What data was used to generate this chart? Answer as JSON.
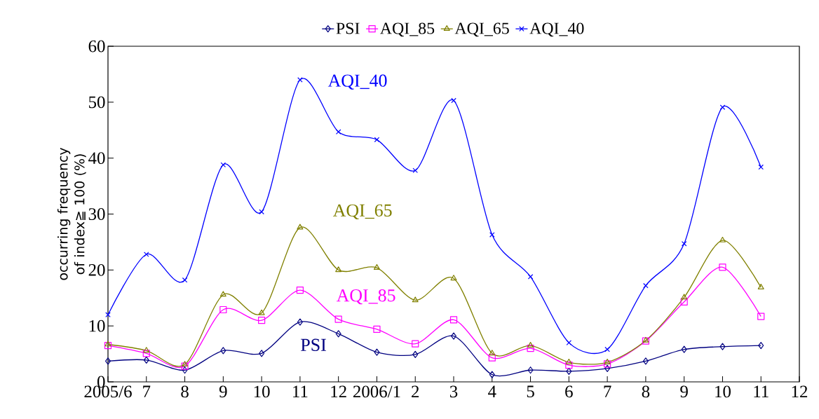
{
  "chart_data": {
    "type": "line",
    "categories": [
      "2005/6",
      "7",
      "8",
      "9",
      "10",
      "11",
      "12",
      "2006/1",
      "2",
      "3",
      "4",
      "5",
      "6",
      "7",
      "8",
      "9",
      "10",
      "11",
      "12"
    ],
    "ylabel": "occurring frequency of index≧ 100 (%)",
    "ylim": [
      0,
      60
    ],
    "yticks": [
      0,
      10,
      20,
      30,
      40,
      50,
      60
    ],
    "legend": "top",
    "grid": false,
    "line_style": "solid",
    "series": [
      {
        "name": "PSI",
        "color": "#000080",
        "marker": "diamond",
        "values": [
          3.7,
          3.9,
          2.1,
          5.6,
          5.1,
          10.7,
          8.6,
          5.3,
          4.9,
          8.2,
          1.3,
          2.1,
          1.9,
          2.4,
          3.7,
          5.8,
          6.3,
          6.5,
          null
        ]
      },
      {
        "name": "AQI_85",
        "color": "#ff00ff",
        "marker": "square",
        "values": [
          6.5,
          5.1,
          2.8,
          12.9,
          11,
          16.4,
          11.2,
          9.4,
          6.8,
          11.1,
          4.3,
          6,
          3,
          3.2,
          7.3,
          14.3,
          20.5,
          11.7,
          null
        ]
      },
      {
        "name": "AQI_65",
        "color": "#808000",
        "marker": "triangle",
        "values": [
          6.7,
          5.6,
          3.1,
          15.6,
          12.3,
          27.6,
          20,
          20.4,
          14.6,
          18.5,
          5.1,
          6.5,
          3.5,
          3.5,
          7.4,
          15.1,
          25.3,
          16.9,
          null
        ]
      },
      {
        "name": "AQI_40",
        "color": "#0000ff",
        "marker": "cross",
        "values": [
          12,
          22.8,
          18.2,
          38.8,
          30.4,
          54,
          44.7,
          43.3,
          37.8,
          50.3,
          26.3,
          18.8,
          7,
          5.8,
          17.2,
          24.7,
          49.1,
          38.4,
          null
        ]
      }
    ],
    "annotations": [
      "PSI",
      "AQI_85",
      "AQI_65",
      "AQI_40"
    ]
  }
}
